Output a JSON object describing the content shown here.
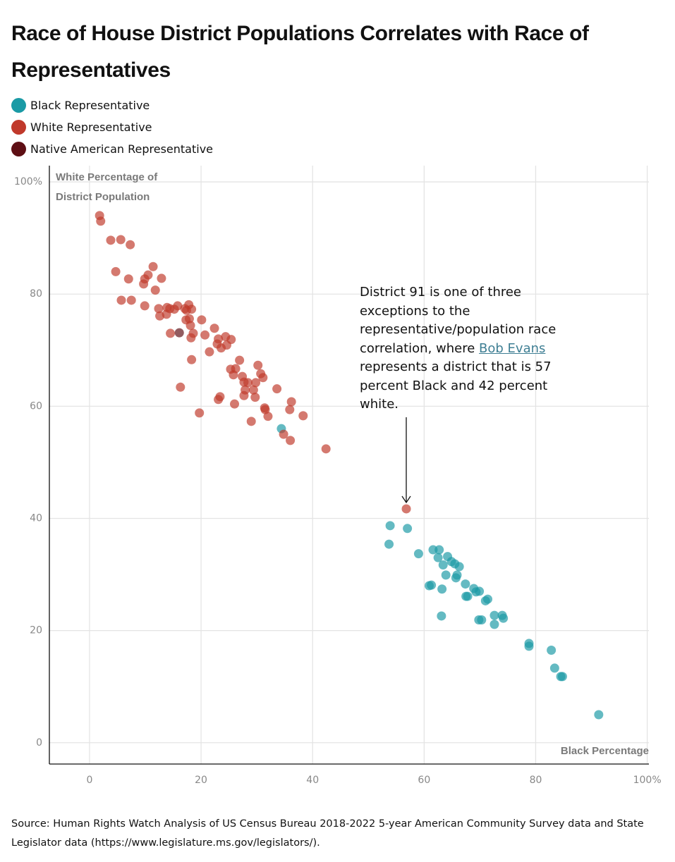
{
  "chart_data": {
    "type": "scatter",
    "title": "Race of House District Populations Correlates with Race of Representatives",
    "x_label": "Black Percentage",
    "y_label": "White Percentage of District Population",
    "annotation": {
      "text_before": "District 91 is one of three exceptions to the representative/population race correlation, where",
      "link": "Bob Evans",
      "text_after": "represents a district that is 57 percent Black and 42 percent white."
    },
    "source": "Source: Human Rights Watch Analysis of US Census Bureau 2018-2022 5-year American Community Survey data and State Legislator data (https://www.legislature.ms.gov/legislators/).",
    "xlim": [
      -7.2,
      100.3
    ],
    "ylim": [
      -3.8,
      102.9
    ],
    "xticks": [
      0,
      20,
      40,
      60,
      80,
      {
        "value": 100,
        "label": "100%"
      }
    ],
    "yticks": [
      0,
      20,
      40,
      60,
      80,
      {
        "value": 100,
        "label": "100%"
      }
    ],
    "grid": true,
    "series": [
      {
        "name": "Black Representative",
        "color": "#1a9aa5",
        "x": [
          34.4,
          53.9,
          57.0,
          53.7,
          59.0,
          61.6,
          62.7,
          62.5,
          64.2,
          64.9,
          65.5,
          66.3,
          63.4,
          63.9,
          65.9,
          65.7,
          67.4,
          61.3,
          60.9,
          63.2,
          68.9,
          69.3,
          69.9,
          67.5,
          67.8,
          71.4,
          71.0,
          63.1,
          72.6,
          74.0,
          74.2,
          69.8,
          70.3,
          72.6,
          78.8,
          78.8,
          82.8,
          83.4,
          84.5,
          84.8,
          91.3
        ],
        "values": [
          56.0,
          38.7,
          38.2,
          35.4,
          33.7,
          34.4,
          34.4,
          33.0,
          33.2,
          32.3,
          31.9,
          31.4,
          31.7,
          29.9,
          29.9,
          29.4,
          28.3,
          28.1,
          28.0,
          27.4,
          27.5,
          26.9,
          27.0,
          26.1,
          26.1,
          25.6,
          25.3,
          22.6,
          22.7,
          22.7,
          22.2,
          21.9,
          21.9,
          21.1,
          17.7,
          17.2,
          16.5,
          13.3,
          11.8,
          11.8,
          5.0
        ]
      },
      {
        "name": "White Representative",
        "color": "#c0392b",
        "x": [
          1.8,
          2.0,
          3.8,
          5.6,
          7.3,
          11.4,
          10.5,
          4.7,
          7.0,
          9.9,
          12.9,
          9.7,
          11.8,
          5.7,
          7.5,
          9.9,
          12.4,
          13.9,
          14.4,
          15.2,
          15.8,
          17.1,
          17.4,
          17.8,
          18.3,
          13.8,
          12.6,
          17.3,
          17.9,
          18.1,
          20.1,
          14.5,
          18.6,
          18.2,
          20.7,
          22.4,
          23.1,
          24.4,
          25.4,
          22.9,
          24.6,
          23.6,
          21.5,
          18.3,
          26.9,
          30.2,
          25.3,
          26.2,
          25.8,
          27.4,
          30.7,
          31.1,
          27.7,
          28.4,
          29.8,
          16.3,
          27.9,
          29.4,
          33.6,
          27.7,
          29.7,
          23.4,
          23.1,
          26.0,
          36.2,
          31.4,
          31.5,
          35.9,
          19.7,
          32.0,
          38.3,
          29.0,
          34.8,
          36.0,
          42.4,
          56.8
        ],
        "values": [
          94.0,
          93.0,
          89.6,
          89.7,
          88.8,
          84.9,
          83.4,
          84.0,
          82.7,
          82.7,
          82.8,
          81.8,
          80.7,
          78.9,
          78.9,
          77.9,
          77.4,
          77.6,
          77.4,
          77.3,
          77.9,
          77.4,
          77.1,
          78.1,
          77.3,
          76.4,
          76.1,
          75.4,
          75.6,
          74.4,
          75.4,
          73.0,
          73.0,
          72.2,
          72.7,
          73.9,
          72.0,
          72.4,
          71.9,
          71.1,
          70.9,
          70.4,
          69.7,
          68.3,
          68.2,
          67.3,
          66.6,
          66.7,
          65.6,
          65.3,
          65.8,
          65.1,
          64.3,
          64.2,
          64.2,
          63.4,
          62.9,
          62.9,
          63.1,
          61.9,
          61.6,
          61.7,
          61.2,
          60.4,
          60.8,
          59.7,
          59.4,
          59.4,
          58.8,
          58.2,
          58.3,
          57.3,
          55.0,
          53.9,
          52.4,
          41.7
        ]
      },
      {
        "name": "Native American Representative",
        "color": "#5e0f14",
        "x": [
          16.1
        ],
        "values": [
          73.1
        ]
      }
    ]
  }
}
